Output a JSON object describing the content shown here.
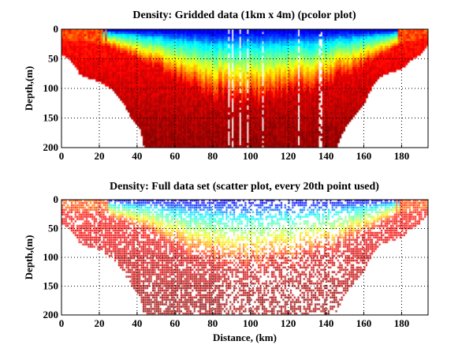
{
  "chart_data": [
    {
      "type": "heatmap",
      "title": "Density: Gridded data (1km x 4m) (pcolor plot)",
      "xlabel": "",
      "ylabel": "Depth,(m)",
      "xlim": [
        0,
        194
      ],
      "ylim": [
        200,
        0
      ],
      "xticks": [
        "0",
        "20",
        "40",
        "60",
        "80",
        "100",
        "120",
        "140",
        "160",
        "180"
      ],
      "yticks": [
        "0",
        "50",
        "100",
        "150",
        "200"
      ],
      "grid": true,
      "colormap": "jet",
      "grid_cell": {
        "dx_km": 1,
        "dz_m": 4
      },
      "bottom_profile": {
        "x": [
          0,
          5,
          10,
          20,
          25,
          30,
          35,
          37,
          42,
          44,
          145,
          150,
          155,
          160,
          165,
          170,
          180,
          185,
          190,
          194
        ],
        "depth": [
          40,
          50,
          75,
          87,
          95,
          110,
          135,
          150,
          170,
          200,
          200,
          165,
          145,
          125,
          90,
          75,
          65,
          50,
          40,
          25
        ]
      },
      "thermocline": {
        "x": [
          0,
          20,
          40,
          60,
          80,
          100,
          120,
          140,
          160,
          180,
          194
        ],
        "depth": [
          3,
          6,
          18,
          35,
          50,
          55,
          50,
          40,
          25,
          6,
          2
        ]
      },
      "gaps_km": [
        88,
        90,
        94,
        98,
        106,
        125,
        136,
        137
      ]
    },
    {
      "type": "scatter",
      "title": "Density: Full data set (scatter plot, every 20th point used)",
      "xlabel": "Distance, (km)",
      "ylabel": "Depth,(m)",
      "xlim": [
        0,
        194
      ],
      "ylim": [
        200,
        0
      ],
      "xticks": [
        "0",
        "20",
        "40",
        "60",
        "80",
        "100",
        "120",
        "140",
        "160",
        "180"
      ],
      "yticks": [
        "0",
        "50",
        "100",
        "150",
        "200"
      ],
      "grid": true,
      "colormap": "jet"
    }
  ]
}
